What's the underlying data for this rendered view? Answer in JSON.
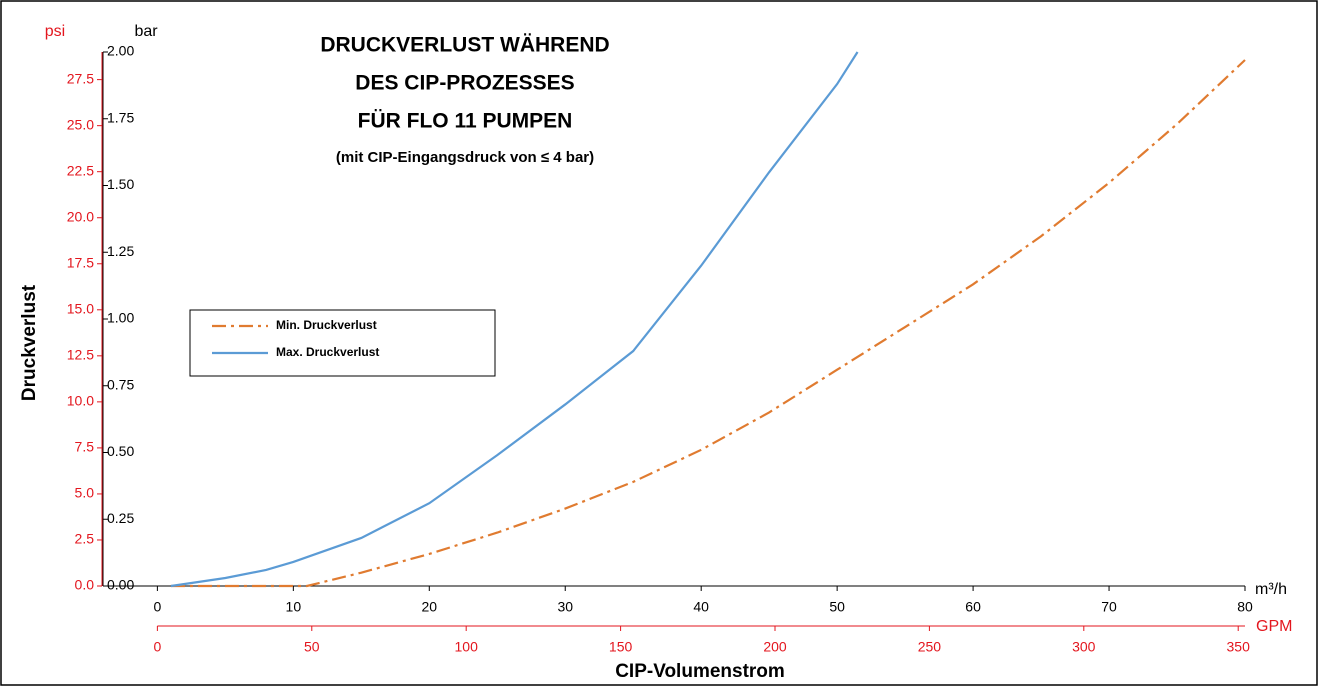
{
  "chart_data": {
    "type": "line",
    "title": [
      "DRUCKVERLUST WÄHREND",
      "DES CIP-PROZESSES",
      "FÜR FLO 11 PUMPEN"
    ],
    "subtitle": "(mit CIP-Eingangsdruck von ≤ 4 bar)",
    "xlabel": "CIP-Volumenstrom",
    "ylabel": "Druckverlust",
    "x_unit": "m³/h",
    "x2_unit": "GPM",
    "y_unit": "bar",
    "y2_unit": "psi",
    "xlim": [
      -4,
      80
    ],
    "xticks": [
      0,
      10,
      20,
      30,
      40,
      50,
      60,
      70,
      80
    ],
    "x2lim": [
      0,
      352.2
    ],
    "x2ticks": [
      0,
      50,
      100,
      150,
      200,
      250,
      300,
      350
    ],
    "ylim": [
      0,
      2
    ],
    "yticks": [
      {
        "value": 0,
        "label": "0.00"
      },
      {
        "value": 0.25,
        "label": "0.25"
      },
      {
        "value": 0.5,
        "label": "0.50"
      },
      {
        "value": 0.75,
        "label": "0.75"
      },
      {
        "value": 1,
        "label": "1.00"
      },
      {
        "value": 1.25,
        "label": "1.25"
      },
      {
        "value": 1.5,
        "label": "1.50"
      },
      {
        "value": 1.75,
        "label": "1.75"
      },
      {
        "value": 2,
        "label": "2.00"
      }
    ],
    "y2lim": [
      0,
      29.0
    ],
    "y2ticks": [
      {
        "value": 0,
        "label": "0.0"
      },
      2.5,
      {
        "value": 5,
        "label": "5.0"
      },
      7.5,
      {
        "value": 10,
        "label": "10.0"
      },
      12.5,
      {
        "value": 15,
        "label": "15.0"
      },
      17.5,
      {
        "value": 20,
        "label": "20.0"
      },
      22.5,
      {
        "value": 25,
        "label": "25.0"
      },
      27.5
    ],
    "secondary_axis_color": "#e3161e",
    "series": [
      {
        "name": "Min. Druckverlust",
        "color": "#e07b30",
        "dash": "dashdot",
        "x": [
          1,
          5,
          8,
          11,
          15,
          20,
          25,
          30,
          35,
          40,
          45,
          50,
          55,
          60,
          65,
          70,
          75,
          80
        ],
        "values": [
          0,
          0,
          0,
          0,
          0.05,
          0.12,
          0.2,
          0.29,
          0.39,
          0.51,
          0.65,
          0.81,
          0.97,
          1.13,
          1.31,
          1.51,
          1.73,
          1.97
        ]
      },
      {
        "name": "Max. Druckverlust",
        "color": "#5b9bd5",
        "dash": "solid",
        "x": [
          1,
          5,
          8,
          10,
          15,
          20,
          25,
          30,
          35,
          40,
          45,
          50,
          51.5
        ],
        "values": [
          0,
          0.03,
          0.06,
          0.09,
          0.18,
          0.31,
          0.49,
          0.68,
          0.88,
          1.2,
          1.55,
          1.88,
          2
        ]
      }
    ]
  }
}
